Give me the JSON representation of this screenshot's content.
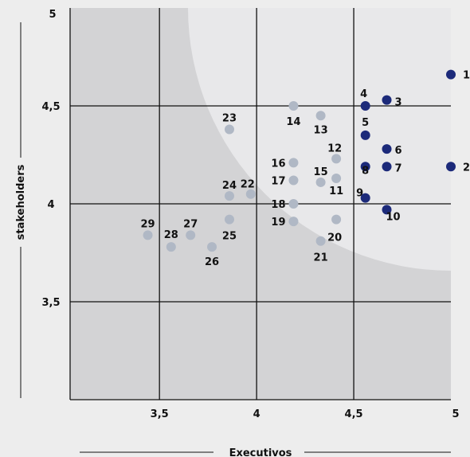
{
  "chart_data": {
    "type": "scatter",
    "xlabel": "Executivos",
    "ylabel": "stakeholders",
    "xlim": [
      3.04,
      5.0
    ],
    "ylim": [
      3.0,
      5.0
    ],
    "x_ticks": [
      3.5,
      4.0,
      4.5,
      5.0
    ],
    "x_tick_labels": [
      "3,5",
      "4",
      "4,5",
      "5"
    ],
    "y_ticks": [
      3.5,
      4.0,
      4.5,
      5.0
    ],
    "y_tick_labels": [
      "3,5",
      "4",
      "4,5",
      "5"
    ],
    "grid": true,
    "highlight_region": "circular-quadrant",
    "colors": {
      "background": "#ededed",
      "plot_area": "#d3d3d5",
      "highlight_area": "#e8e8ea",
      "highlighted_point": "#1c2a7a",
      "regular_point": "#b0b8c5",
      "grid": "#111111"
    },
    "points": [
      {
        "label": "1",
        "x": 5.0,
        "y": 4.66,
        "highlight": true
      },
      {
        "label": "2",
        "x": 5.0,
        "y": 4.19,
        "highlight": true
      },
      {
        "label": "3",
        "x": 4.67,
        "y": 4.53,
        "highlight": true
      },
      {
        "label": "4",
        "x": 4.56,
        "y": 4.5,
        "highlight": true
      },
      {
        "label": "5",
        "x": 4.56,
        "y": 4.35,
        "highlight": true
      },
      {
        "label": "6",
        "x": 4.67,
        "y": 4.28,
        "highlight": true
      },
      {
        "label": "7",
        "x": 4.67,
        "y": 4.19,
        "highlight": true
      },
      {
        "label": "8",
        "x": 4.56,
        "y": 4.19,
        "highlight": true
      },
      {
        "label": "9",
        "x": 4.56,
        "y": 4.03,
        "highlight": true
      },
      {
        "label": "10",
        "x": 4.67,
        "y": 3.97,
        "highlight": true
      },
      {
        "label": "11",
        "x": 4.41,
        "y": 4.13,
        "highlight": false
      },
      {
        "label": "12",
        "x": 4.41,
        "y": 4.23,
        "highlight": false
      },
      {
        "label": "13",
        "x": 4.33,
        "y": 4.45,
        "highlight": false
      },
      {
        "label": "14",
        "x": 4.19,
        "y": 4.5,
        "highlight": false
      },
      {
        "label": "15",
        "x": 4.33,
        "y": 4.11,
        "highlight": false
      },
      {
        "label": "16",
        "x": 4.19,
        "y": 4.21,
        "highlight": false
      },
      {
        "label": "17",
        "x": 4.19,
        "y": 4.12,
        "highlight": false
      },
      {
        "label": "18",
        "x": 4.19,
        "y": 4.0,
        "highlight": false
      },
      {
        "label": "19",
        "x": 4.19,
        "y": 3.91,
        "highlight": false
      },
      {
        "label": "20",
        "x": 4.41,
        "y": 3.92,
        "highlight": false
      },
      {
        "label": "21",
        "x": 4.33,
        "y": 3.81,
        "highlight": false
      },
      {
        "label": "22",
        "x": 3.97,
        "y": 4.05,
        "highlight": false
      },
      {
        "label": "23",
        "x": 3.86,
        "y": 4.38,
        "highlight": false
      },
      {
        "label": "24",
        "x": 3.86,
        "y": 4.04,
        "highlight": false
      },
      {
        "label": "25",
        "x": 3.86,
        "y": 3.92,
        "highlight": false
      },
      {
        "label": "26",
        "x": 3.77,
        "y": 3.78,
        "highlight": false
      },
      {
        "label": "27",
        "x": 3.66,
        "y": 3.84,
        "highlight": false
      },
      {
        "label": "28",
        "x": 3.56,
        "y": 3.78,
        "highlight": false
      },
      {
        "label": "29",
        "x": 3.44,
        "y": 3.84,
        "highlight": false
      }
    ]
  }
}
